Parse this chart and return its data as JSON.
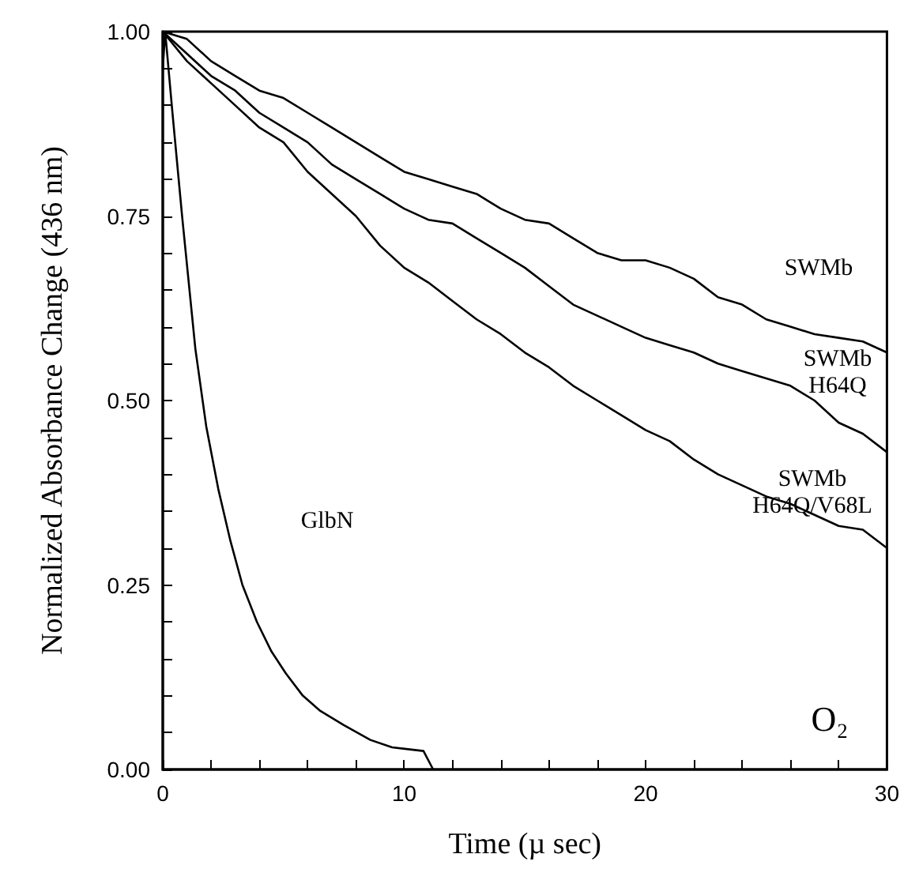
{
  "chart_data": {
    "type": "line",
    "xlabel": "Time (µ sec)",
    "ylabel": "Normalized Absorbance Change (436 nm)",
    "xlim": [
      0,
      30
    ],
    "ylim": [
      0,
      1
    ],
    "xticks": [
      0,
      {
        "value": 2,
        "label": null
      },
      {
        "value": 4,
        "label": null
      },
      {
        "value": 6,
        "label": null
      },
      {
        "value": 8,
        "label": null
      },
      10,
      {
        "value": 12,
        "label": null
      },
      {
        "value": 14,
        "label": null
      },
      {
        "value": 16,
        "label": null
      },
      {
        "value": 18,
        "label": null
      },
      20,
      {
        "value": 22,
        "label": null
      },
      {
        "value": 24,
        "label": null
      },
      {
        "value": 26,
        "label": null
      },
      {
        "value": 28,
        "label": null
      },
      30
    ],
    "yticks": [
      {
        "value": 0,
        "label": "0.00"
      },
      {
        "value": 0.05,
        "label": null
      },
      {
        "value": 0.1,
        "label": null
      },
      {
        "value": 0.15,
        "label": null
      },
      {
        "value": 0.2,
        "label": null
      },
      0.25,
      {
        "value": 0.3,
        "label": null
      },
      {
        "value": 0.35,
        "label": null
      },
      {
        "value": 0.4,
        "label": null
      },
      {
        "value": 0.45,
        "label": null
      },
      {
        "value": 0.5,
        "label": "0.50"
      },
      {
        "value": 0.55,
        "label": null
      },
      {
        "value": 0.6,
        "label": null
      },
      {
        "value": 0.65,
        "label": null
      },
      {
        "value": 0.7,
        "label": null
      },
      0.75,
      {
        "value": 0.8,
        "label": null
      },
      {
        "value": 0.85,
        "label": null
      },
      {
        "value": 0.9,
        "label": null
      },
      {
        "value": 0.95,
        "label": null
      },
      {
        "value": 1,
        "label": "1.00"
      }
    ],
    "grid": false,
    "marker": "none",
    "line_style": "solid",
    "series": [
      {
        "color": "#000000",
        "x": [
          0,
          1,
          2,
          3,
          4,
          5,
          6,
          7,
          8,
          9,
          10,
          11,
          12,
          13,
          14,
          15,
          16,
          17,
          18,
          19,
          20,
          21,
          22,
          23,
          24,
          25,
          26,
          27,
          28,
          29,
          30
        ],
        "values": [
          1.0,
          0.99,
          0.96,
          0.94,
          0.92,
          0.91,
          0.89,
          0.87,
          0.85,
          0.83,
          0.81,
          0.8,
          0.79,
          0.78,
          0.76,
          0.745,
          0.74,
          0.72,
          0.7,
          0.69,
          0.69,
          0.68,
          0.665,
          0.64,
          0.63,
          0.61,
          0.6,
          0.59,
          0.585,
          0.58,
          0.565
        ]
      },
      {
        "color": "#000000",
        "x": [
          0,
          1,
          2,
          3,
          4,
          5,
          6,
          7,
          8,
          9,
          10,
          11,
          12,
          13,
          14,
          15,
          16,
          17,
          18,
          19,
          20,
          21,
          22,
          23,
          24,
          25,
          26,
          27,
          28,
          29,
          30
        ],
        "values": [
          1.0,
          0.97,
          0.94,
          0.92,
          0.89,
          0.87,
          0.85,
          0.82,
          0.8,
          0.78,
          0.76,
          0.745,
          0.74,
          0.72,
          0.7,
          0.68,
          0.655,
          0.63,
          0.615,
          0.6,
          0.585,
          0.575,
          0.565,
          0.55,
          0.54,
          0.53,
          0.52,
          0.5,
          0.47,
          0.455,
          0.43
        ]
      },
      {
        "color": "#000000",
        "x": [
          0,
          1,
          2,
          3,
          4,
          5,
          6,
          7,
          8,
          9,
          10,
          11,
          12,
          13,
          14,
          15,
          16,
          17,
          18,
          19,
          20,
          21,
          22,
          23,
          24,
          25,
          26,
          27,
          28,
          29,
          30
        ],
        "values": [
          1.0,
          0.96,
          0.93,
          0.9,
          0.87,
          0.85,
          0.81,
          0.78,
          0.75,
          0.71,
          0.68,
          0.66,
          0.635,
          0.61,
          0.59,
          0.565,
          0.545,
          0.52,
          0.5,
          0.48,
          0.46,
          0.445,
          0.42,
          0.4,
          0.385,
          0.37,
          0.36,
          0.345,
          0.33,
          0.325,
          0.3
        ]
      },
      {
        "color": "#000000",
        "x": [
          0,
          0.1,
          0.4,
          0.8,
          1.35,
          1.8,
          2.3,
          2.8,
          3.3,
          3.9,
          4.5,
          5.1,
          5.8,
          6.5,
          7.5,
          8.6,
          9.5,
          10.8,
          11.2
        ],
        "values": [
          0.95,
          1.0,
          0.89,
          0.75,
          0.57,
          0.465,
          0.38,
          0.31,
          0.25,
          0.2,
          0.16,
          0.13,
          0.1,
          0.08,
          0.06,
          0.04,
          0.03,
          0.025,
          0.0
        ]
      }
    ],
    "annotations": [
      "SWMb",
      "SWMb\nH64Q",
      "SWMb\nH64Q/V68L",
      "GlbN",
      "O₂"
    ]
  }
}
